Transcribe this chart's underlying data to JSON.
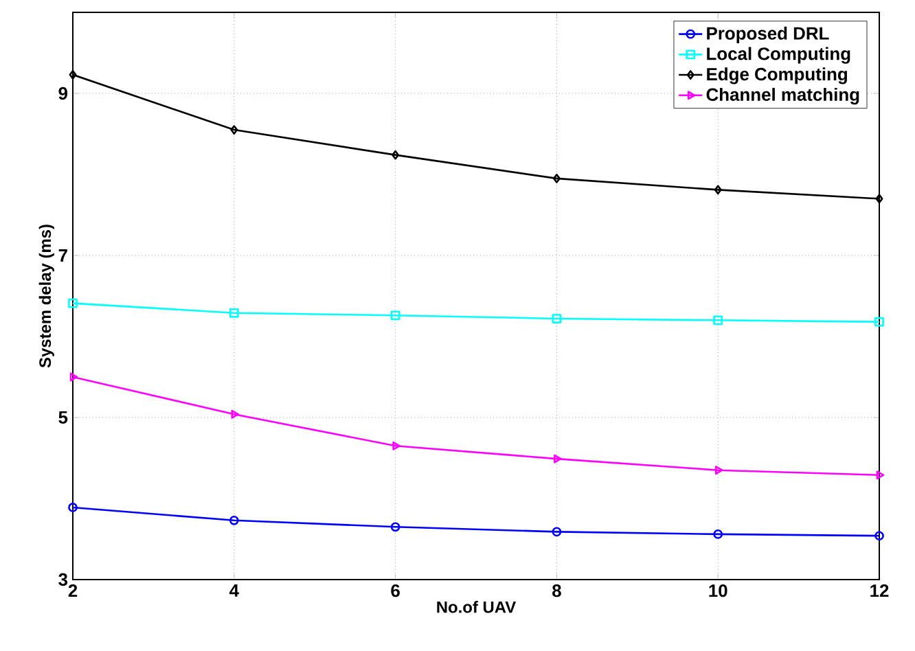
{
  "chart_data": {
    "type": "line",
    "xlabel": "No.of UAV",
    "ylabel": "System delay (ms)",
    "x": [
      2,
      4,
      6,
      8,
      10,
      12
    ],
    "xlim": [
      2,
      12
    ],
    "xticks": [
      2,
      4,
      6,
      8,
      10,
      12
    ],
    "ylim": [
      3,
      10
    ],
    "yticks": [
      3,
      5,
      7,
      9
    ],
    "grid": true,
    "legend": "top right",
    "line_style": "solid",
    "series": [
      {
        "name": "Proposed DRL",
        "color": "#0000ff",
        "marker": "circle",
        "values": [
          3.89,
          3.73,
          3.65,
          3.59,
          3.56,
          3.54
        ]
      },
      {
        "name": "Local Computing",
        "color": "#00ffff",
        "marker": "square",
        "values": [
          6.41,
          6.29,
          6.26,
          6.22,
          6.2,
          6.18
        ]
      },
      {
        "name": "Edge Computing",
        "color": "#000000",
        "marker": "diamond",
        "values": [
          9.23,
          8.55,
          8.24,
          7.95,
          7.81,
          7.7
        ]
      },
      {
        "name": "Channel matching",
        "color": "#ff00ff",
        "marker": "triangle",
        "values": [
          5.5,
          5.04,
          4.65,
          4.49,
          4.35,
          4.29
        ]
      }
    ]
  }
}
